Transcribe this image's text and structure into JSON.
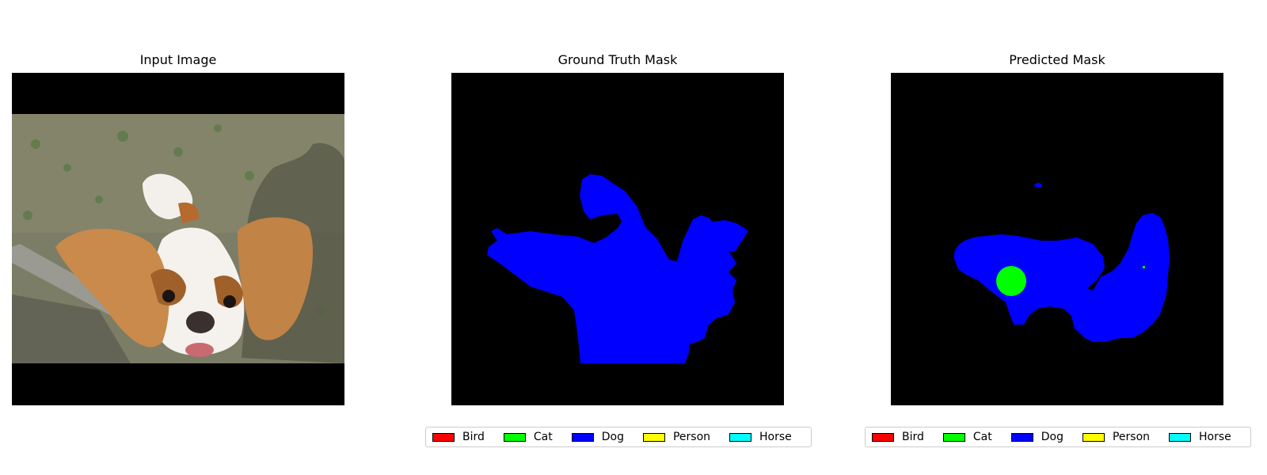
{
  "panels": {
    "input": {
      "title": "Input Image"
    },
    "ground_truth": {
      "title": "Ground Truth Mask"
    },
    "predicted": {
      "title": "Predicted Mask"
    }
  },
  "legend": {
    "items": [
      {
        "label": "Bird",
        "color": "#ff0000"
      },
      {
        "label": "Cat",
        "color": "#00ff00"
      },
      {
        "label": "Dog",
        "color": "#0000ff"
      },
      {
        "label": "Person",
        "color": "#ffff00"
      },
      {
        "label": "Horse",
        "color": "#00ffff"
      }
    ]
  },
  "colors": {
    "background": "#000000",
    "dog": "#0000ff",
    "cat": "#00ff00"
  }
}
